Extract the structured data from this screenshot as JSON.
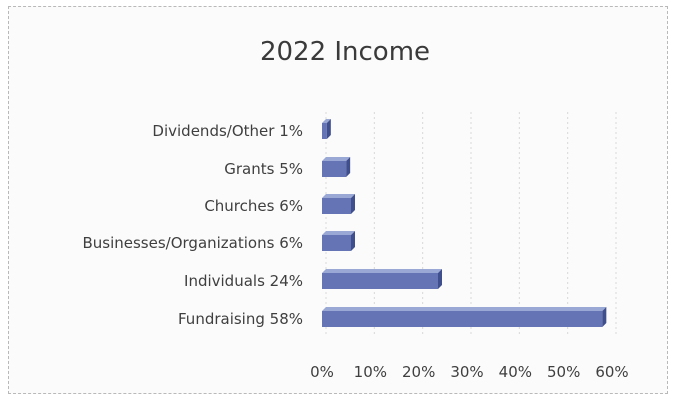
{
  "chart_data": {
    "type": "bar",
    "orientation": "horizontal",
    "title": "2022 Income",
    "categories": [
      "Dividends/Other 1%",
      "Grants 5%",
      "Churches 6%",
      "Businesses/Organizations 6%",
      "Individuals 24%",
      "Fundraising 58%"
    ],
    "values": [
      1,
      5,
      6,
      6,
      24,
      58
    ],
    "xlim": [
      0,
      60
    ],
    "xticks": [
      "0%",
      "10%",
      "20%",
      "30%",
      "40%",
      "50%",
      "60%"
    ],
    "xlabel": "",
    "ylabel": "",
    "grid": true,
    "legend": "none",
    "colors": {
      "bar_top": "#9aa8d6",
      "bar_face": "#6474b4",
      "bar_side": "#3f4f8e",
      "grid": "#d9d9d9",
      "text": "#3f3f3f"
    }
  }
}
